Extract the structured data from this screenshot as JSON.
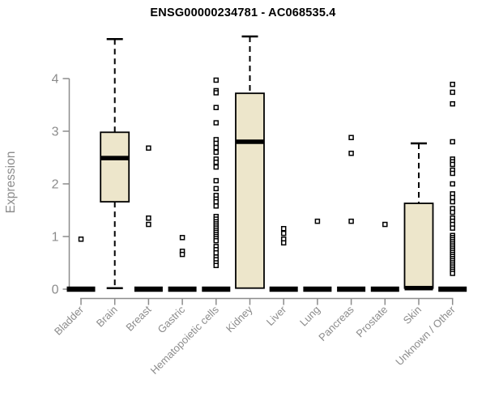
{
  "header": {
    "title": "ENSG00000234781 - AC068535.4"
  },
  "chart_data": {
    "type": "boxplot",
    "title": "ENSG00000234781 - AC068535.4",
    "ylabel": "Expression",
    "xlabel": "",
    "ylim": [
      0,
      4.9
    ],
    "yticks": [
      0,
      1,
      2,
      3,
      4
    ],
    "grid": false,
    "legend": false,
    "categories": [
      "Bladder",
      "Brain",
      "Breast",
      "Gastric",
      "Hematopoietic cells",
      "Kidney",
      "Liver",
      "Lung",
      "Pancreas",
      "Prostate",
      "Skin",
      "Unknown / Other"
    ],
    "boxes": [
      {
        "category": "Bladder",
        "q1": 0,
        "median": 0,
        "q3": 0,
        "whisker_low": 0,
        "whisker_high": 0,
        "outliers": [
          0.95
        ]
      },
      {
        "category": "Brain",
        "q1": 1.66,
        "median": 2.49,
        "q3": 2.98,
        "whisker_low": 0.02,
        "whisker_high": 4.75,
        "outliers": []
      },
      {
        "category": "Breast",
        "q1": 0,
        "median": 0,
        "q3": 0,
        "whisker_low": 0,
        "whisker_high": 0,
        "outliers": [
          2.68,
          1.35,
          1.23
        ]
      },
      {
        "category": "Gastric",
        "q1": 0,
        "median": 0,
        "q3": 0,
        "whisker_low": 0,
        "whisker_high": 0,
        "outliers": [
          0.98,
          0.72,
          0.66
        ]
      },
      {
        "category": "Hematopoietic cells",
        "q1": 0,
        "median": 0,
        "q3": 0,
        "whisker_low": 0,
        "whisker_high": 0,
        "outliers": [
          3.97,
          3.77,
          3.73,
          3.45,
          3.16,
          2.84,
          2.77,
          2.69,
          2.6,
          2.47,
          2.41,
          2.32,
          2.06,
          1.91,
          1.78,
          1.71,
          1.66,
          1.58,
          1.38,
          1.33,
          1.28,
          1.24,
          1.2,
          1.16,
          1.12,
          1.08,
          1.04,
          1.0,
          0.96,
          0.92,
          0.81,
          0.75,
          0.69,
          0.61,
          0.56,
          0.5,
          0.45
        ]
      },
      {
        "category": "Kidney",
        "q1": 0.02,
        "median": 2.8,
        "q3": 3.72,
        "whisker_low": 0.02,
        "whisker_high": 4.8,
        "outliers": []
      },
      {
        "category": "Liver",
        "q1": 0,
        "median": 0,
        "q3": 0,
        "whisker_low": 0,
        "whisker_high": 0,
        "outliers": [
          1.15,
          1.06,
          0.95,
          0.88
        ]
      },
      {
        "category": "Lung",
        "q1": 0,
        "median": 0,
        "q3": 0,
        "whisker_low": 0,
        "whisker_high": 0,
        "outliers": [
          1.29
        ]
      },
      {
        "category": "Pancreas",
        "q1": 0,
        "median": 0,
        "q3": 0,
        "whisker_low": 0,
        "whisker_high": 0,
        "outliers": [
          2.88,
          2.58,
          1.29
        ]
      },
      {
        "category": "Prostate",
        "q1": 0,
        "median": 0,
        "q3": 0,
        "whisker_low": 0,
        "whisker_high": 0,
        "outliers": [
          1.23
        ]
      },
      {
        "category": "Skin",
        "q1": 0.02,
        "median": 0.02,
        "q3": 1.63,
        "whisker_low": 0.02,
        "whisker_high": 2.77,
        "outliers": []
      },
      {
        "category": "Unknown / Other",
        "q1": 0,
        "median": 0,
        "q3": 0,
        "whisker_low": 0,
        "whisker_high": 0,
        "outliers": [
          3.89,
          3.74,
          3.52,
          2.8,
          2.47,
          2.42,
          2.37,
          2.26,
          2.2,
          2.0,
          1.81,
          1.74,
          1.66,
          1.53,
          1.46,
          1.35,
          1.29,
          1.23,
          1.16,
          1.02,
          0.98,
          0.94,
          0.9,
          0.86,
          0.82,
          0.78,
          0.74,
          0.7,
          0.66,
          0.62,
          0.58,
          0.54,
          0.5,
          0.46,
          0.42,
          0.38,
          0.34,
          0.3
        ]
      }
    ],
    "colors": {
      "box_fill": "#EDE6CB",
      "box_border": "#000000",
      "median": "#000000",
      "whisker": "#000000",
      "outlier_border": "#000000",
      "outlier_fill": "#FFFFFF",
      "axis": "#8C8C8C",
      "tick_label": "#8C8C8C",
      "title": "#000000",
      "background": "#FFFFFF"
    }
  }
}
